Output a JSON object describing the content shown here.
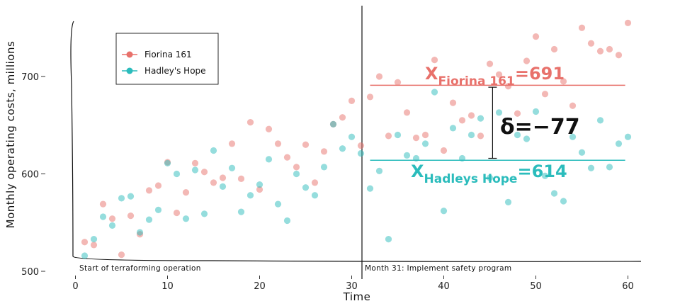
{
  "chart_data": {
    "type": "scatter",
    "xlabel": "Time",
    "ylabel": "Monthly operating costs, millions",
    "xlim": [
      -1,
      61
    ],
    "ylim": [
      500,
      760
    ],
    "xticks": [
      0,
      10,
      20,
      30,
      40,
      50,
      60
    ],
    "yticks": [
      500,
      600,
      700
    ],
    "legend_position": "top-left",
    "grid": false,
    "series": [
      {
        "name": "Fiorina 161",
        "color": "#e8716b",
        "x": [
          1,
          2,
          3,
          4,
          5,
          6,
          7,
          8,
          9,
          10,
          11,
          12,
          13,
          14,
          15,
          16,
          17,
          18,
          19,
          20,
          21,
          22,
          23,
          24,
          25,
          26,
          27,
          28,
          29,
          30,
          31,
          32,
          33,
          34,
          35,
          36,
          37,
          38,
          39,
          40,
          41,
          42,
          43,
          44,
          45,
          46,
          47,
          48,
          49,
          50,
          51,
          52,
          53,
          54,
          55,
          56,
          57,
          58,
          59,
          60
        ],
        "y": [
          530,
          527,
          569,
          554,
          517,
          557,
          538,
          583,
          588,
          612,
          560,
          581,
          611,
          602,
          591,
          596,
          631,
          595,
          653,
          584,
          646,
          631,
          617,
          607,
          630,
          591,
          623,
          651,
          658,
          675,
          629,
          679,
          700,
          639,
          694,
          663,
          637,
          640,
          717,
          624,
          673,
          655,
          660,
          639,
          713,
          702,
          690,
          662,
          716,
          741,
          682,
          728,
          695,
          670,
          750,
          734,
          726,
          728,
          722,
          755
        ]
      },
      {
        "name": "Hadley's Hope",
        "color": "#2bbcbc",
        "x": [
          1,
          2,
          3,
          4,
          5,
          6,
          7,
          8,
          9,
          10,
          11,
          12,
          13,
          14,
          15,
          16,
          17,
          18,
          19,
          20,
          21,
          22,
          23,
          24,
          25,
          26,
          27,
          28,
          29,
          30,
          31,
          32,
          33,
          34,
          35,
          36,
          37,
          38,
          39,
          40,
          41,
          42,
          43,
          44,
          45,
          46,
          47,
          48,
          49,
          50,
          51,
          52,
          53,
          54,
          55,
          56,
          57,
          58,
          59,
          60
        ],
        "y": [
          516,
          533,
          556,
          547,
          575,
          577,
          540,
          553,
          563,
          611,
          600,
          554,
          604,
          559,
          624,
          587,
          606,
          561,
          578,
          589,
          615,
          569,
          552,
          600,
          586,
          578,
          607,
          651,
          626,
          638,
          621,
          585,
          603,
          533,
          640,
          619,
          616,
          631,
          684,
          562,
          647,
          616,
          640,
          657,
          596,
          663,
          571,
          640,
          636,
          664,
          598,
          580,
          572,
          638,
          622,
          606,
          655,
          607,
          631,
          638
        ]
      }
    ],
    "annotations": {
      "left_line_label": "Start of terraforming operation",
      "right_line_label": "Month 31: Implement safety program",
      "fiorina_mean_value": 691,
      "hadleys_mean_value": 614,
      "fiorina_mean_text": "X",
      "fiorina_mean_sub": "Fiorina 161",
      "fiorina_mean_tail": "=691",
      "hadleys_mean_text": "X",
      "hadleys_mean_sub": "Hadleys Hope",
      "hadleys_mean_tail": "=614",
      "delta_text": "δ=−77"
    }
  }
}
